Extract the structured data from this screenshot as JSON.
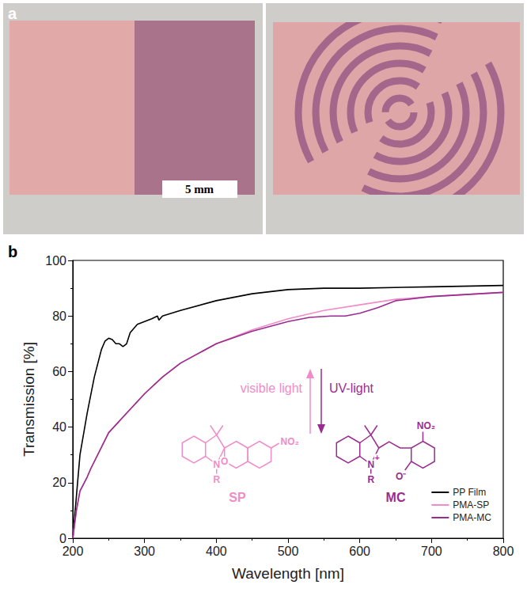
{
  "photo": {
    "label": "a",
    "scale_bar": "5 mm"
  },
  "chart_data": {
    "type": "line",
    "panel_label": "b",
    "x_label": "Wavelength [nm]",
    "y_label": "Transmission [%]",
    "xlim": [
      200,
      800
    ],
    "xticks": [
      200,
      300,
      400,
      500,
      600,
      700,
      800
    ],
    "ylim": [
      0,
      100
    ],
    "yticks": [
      0,
      20,
      40,
      60,
      80,
      100
    ],
    "grid": false,
    "legend": "lower right",
    "series": [
      {
        "name": "PP Film",
        "color": "#000000",
        "x": [
          200,
          205,
          210,
          220,
          230,
          240,
          245,
          250,
          255,
          260,
          265,
          270,
          275,
          280,
          290,
          300,
          310,
          318,
          320,
          325,
          350,
          400,
          450,
          500,
          550,
          600,
          700,
          800
        ],
        "values": [
          0,
          15,
          30,
          45,
          58,
          68,
          71,
          72,
          71.5,
          70,
          70,
          69,
          70,
          74,
          77,
          78,
          79,
          80,
          78.5,
          80,
          82,
          85.5,
          88,
          89.5,
          90,
          90,
          90.5,
          91
        ]
      },
      {
        "name": "PMA-SP",
        "color": "#f08cc8",
        "x": [
          200,
          205,
          210,
          220,
          225,
          250,
          275,
          300,
          325,
          350,
          400,
          450,
          500,
          550,
          600,
          650,
          700,
          800
        ],
        "values": [
          0,
          10,
          17,
          22,
          25,
          38,
          45,
          52,
          58,
          63,
          70,
          75,
          79,
          82,
          84,
          86,
          87,
          88.5
        ]
      },
      {
        "name": "PMA-MC",
        "color": "#9b2c8f",
        "x": [
          200,
          205,
          210,
          220,
          225,
          250,
          275,
          300,
          325,
          350,
          400,
          450,
          500,
          530,
          560,
          580,
          600,
          625,
          650,
          700,
          800
        ],
        "values": [
          0,
          10,
          17,
          22,
          25,
          38,
          45,
          52,
          58,
          63,
          70,
          74.5,
          78,
          79.5,
          80,
          80,
          81,
          83,
          85.5,
          87,
          88.5
        ]
      }
    ],
    "annotations": [
      {
        "text": "visible light",
        "color": "#f08cc8"
      },
      {
        "text": "UV-light",
        "color": "#9b2c8f"
      }
    ],
    "structures": [
      {
        "label": "SP",
        "color": "#f08cc8",
        "atoms": [
          "N",
          "R",
          "O",
          "NO₂"
        ]
      },
      {
        "label": "MC",
        "color": "#9b2c8f",
        "atoms": [
          "N",
          "+",
          "R",
          "NO₂",
          "O⁻"
        ]
      }
    ]
  }
}
